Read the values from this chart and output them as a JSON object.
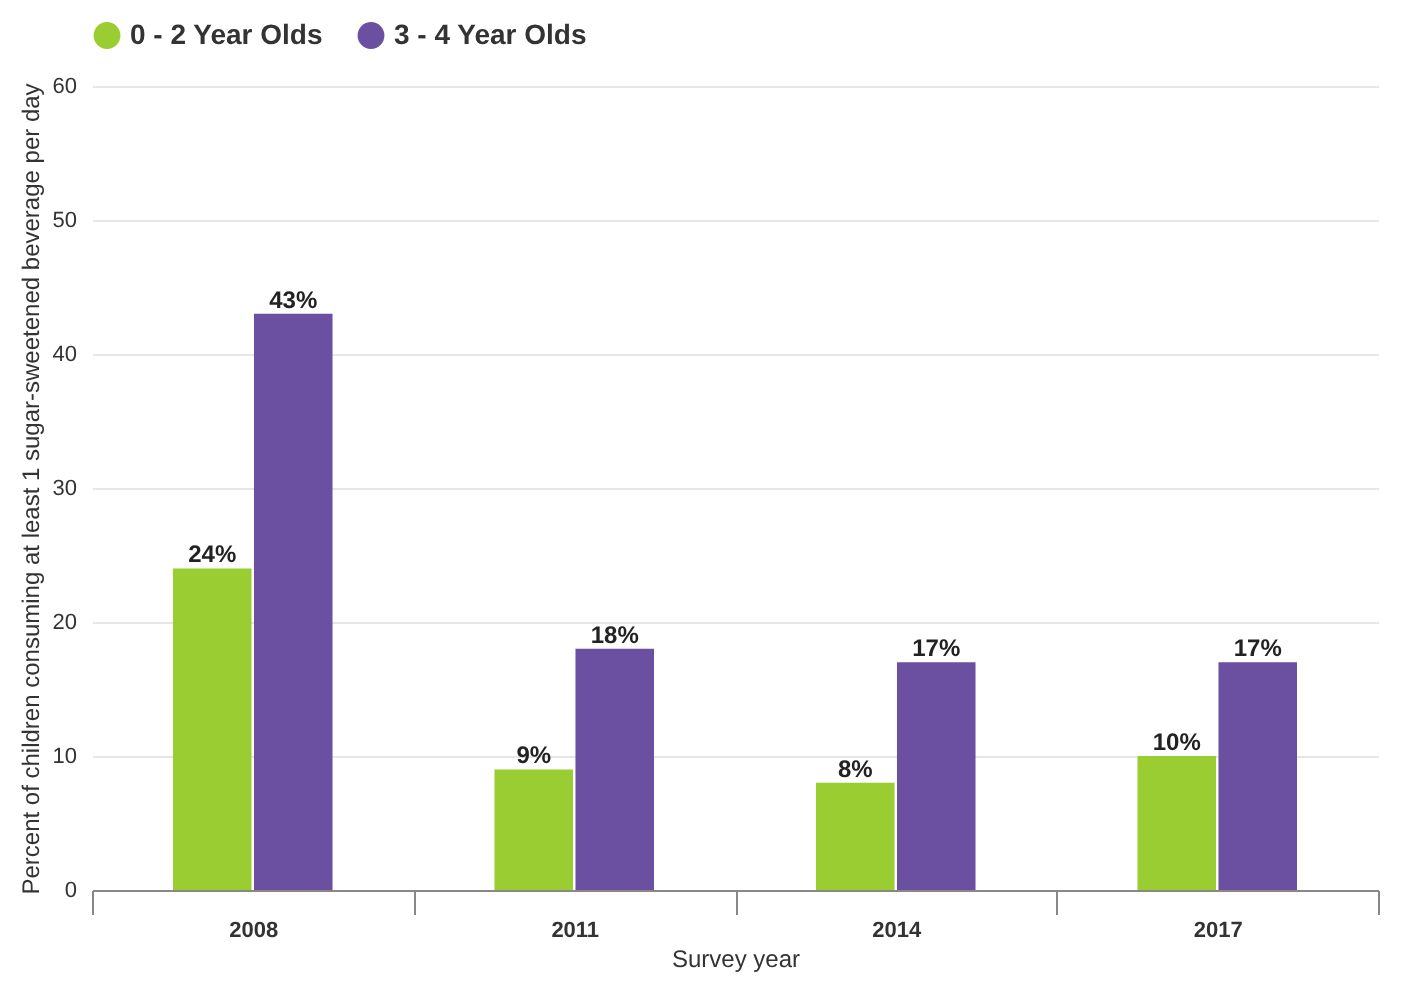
{
  "chart_data": {
    "type": "bar",
    "xlabel": "Survey year",
    "ylabel": "Percent of children consuming at least 1 sugar-sweetened beverage per day",
    "categories": [
      "2008",
      "2011",
      "2014",
      "2017"
    ],
    "series": [
      {
        "name": "0 - 2 Year Olds",
        "color": "#9acd32",
        "values": [
          24,
          9,
          8,
          10
        ],
        "value_labels": [
          "24%",
          "9%",
          "8%",
          "10%"
        ]
      },
      {
        "name": "3 - 4 Year Olds",
        "color": "#6b4fa0",
        "values": [
          43,
          18,
          17,
          17
        ],
        "value_labels": [
          "43%",
          "18%",
          "17%",
          "17%"
        ]
      }
    ],
    "ylim": [
      0,
      60
    ],
    "yticks": [
      0,
      10,
      20,
      30,
      40,
      50,
      60
    ],
    "grid": "y",
    "legend": "top"
  }
}
